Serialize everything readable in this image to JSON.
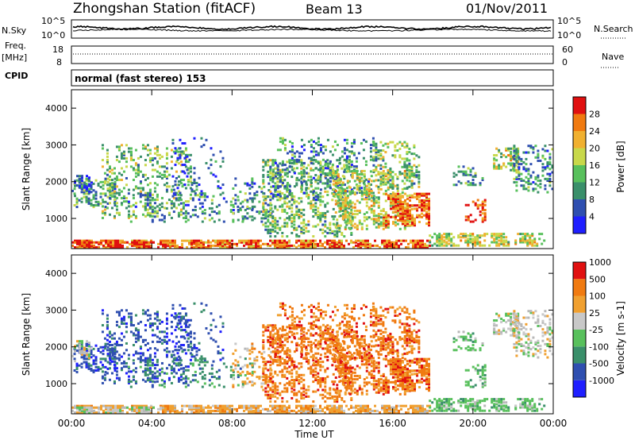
{
  "header": {
    "station": "Zhongshan Station (fitACF)",
    "beam": "Beam 13",
    "date": "01/Nov/2011"
  },
  "left_labels": {
    "nsky": "N.Sky",
    "freq_line1": "Freq.",
    "freq_line2": "[MHz]",
    "cpid": "CPID"
  },
  "right_labels": {
    "nsearch": "N.Search",
    "nave": "Nave"
  },
  "noise_axis": {
    "top": "10^5",
    "bottom": "10^0",
    "right_top": "10^5",
    "right_bottom": "10^0"
  },
  "freq_axis": {
    "top": "18",
    "bottom": "8",
    "right_top": "60",
    "right_bottom": "0"
  },
  "cpid_text": "normal (fast stereo) 153",
  "colors": {
    "power_scale": [
      "#1f1fff",
      "#2f4fb0",
      "#3a8f6a",
      "#58c05c",
      "#c8d84a",
      "#f0b030",
      "#f07a10",
      "#e01010"
    ],
    "velocity_scale": [
      "#e01010",
      "#f07a10",
      "#f0a030",
      "#c8c8c8",
      "#58c05c",
      "#3a8f6a",
      "#2f4fb0",
      "#1f1fff"
    ],
    "ground_scatter": "#b8b8b8"
  },
  "chart_data": [
    {
      "type": "heatmap",
      "name": "power",
      "ylabel": "Slant Range [km]",
      "ylim": [
        180,
        4500
      ],
      "yticks": [
        "1000",
        "2000",
        "3000",
        "4000"
      ],
      "colorbar_label": "Power [dB]",
      "colorbar_ticks": [
        "4",
        "8",
        "12",
        "16",
        "20",
        "24",
        "28"
      ],
      "colorbar_range": [
        0,
        30
      ]
    },
    {
      "type": "heatmap",
      "name": "velocity",
      "ylabel": "Slant Range [km]",
      "ylim": [
        180,
        4500
      ],
      "yticks": [
        "1000",
        "2000",
        "3000",
        "4000"
      ],
      "colorbar_label": "Velocity [m s-1]",
      "colorbar_ticks": [
        "1000",
        "500",
        "100",
        "25",
        "-25",
        "-100",
        "-500",
        "-1000"
      ]
    }
  ],
  "x_axis": {
    "label": "Time UT",
    "ticks": [
      "00:00",
      "04:00",
      "08:00",
      "12:00",
      "16:00",
      "20:00",
      "00:00"
    ],
    "xlim_hours": [
      0,
      24
    ]
  }
}
